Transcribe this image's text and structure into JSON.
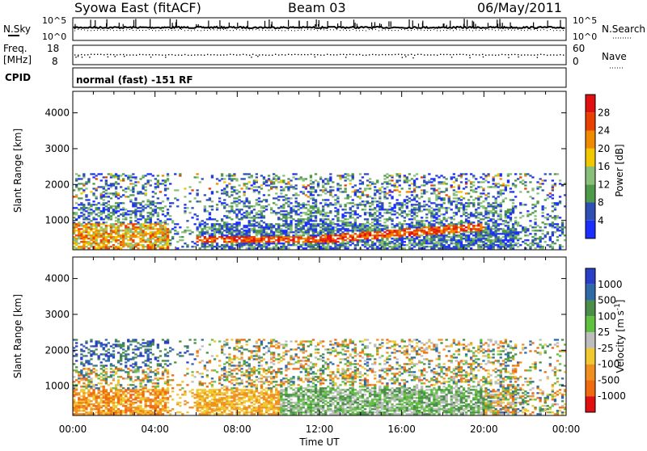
{
  "header": {
    "station": "Syowa East (fitACF)",
    "beam": "Beam 03",
    "date": "06/May/2011"
  },
  "noise_panel": {
    "left_label": "N.Sky",
    "right_label": "N.Search",
    "top_tick": "10^5",
    "bottom_tick": "10^0"
  },
  "freq_panel": {
    "left_label_line1": "Freq.",
    "left_label_line2": "[MHz]",
    "left_ticks": [
      "18",
      "8"
    ],
    "right_label": "Nave",
    "right_ticks": [
      "60",
      "0"
    ]
  },
  "cpid_panel": {
    "label": "CPID",
    "text": "normal (fast) -151 RF"
  },
  "chart_data": [
    {
      "type": "heatmap",
      "name": "power",
      "ylabel": "Slant Range [km]",
      "yticks": [
        1000,
        2000,
        3000,
        4000
      ],
      "ylim": [
        180,
        4600
      ],
      "xlim": [
        0,
        24
      ],
      "colorbar": {
        "label": "Power [dB]",
        "range": [
          0,
          32
        ],
        "ticks": [
          "4",
          "8",
          "12",
          "16",
          "20",
          "24",
          "28"
        ],
        "colors": [
          "#1a2fff",
          "#2f4fb5",
          "#4e9a4a",
          "#88c07a",
          "#f0c800",
          "#f08a00",
          "#e84000",
          "#e01010"
        ]
      }
    },
    {
      "type": "heatmap",
      "name": "velocity",
      "ylabel": "Slant Range [km]",
      "yticks": [
        1000,
        2000,
        3000,
        4000
      ],
      "ylim": [
        180,
        4600
      ],
      "xlim": [
        0,
        24
      ],
      "xlabel": "Time UT",
      "xticks": [
        "00:00",
        "04:00",
        "08:00",
        "12:00",
        "16:00",
        "20:00",
        "00:00"
      ],
      "colorbar": {
        "label": "Velocity [m s",
        "label_sup": "-1",
        "label_end": "]",
        "ticks": [
          "1000",
          "500",
          "100",
          "25",
          "-25",
          "-100",
          "-500",
          "-1000"
        ],
        "colors": [
          "#2a3fc8",
          "#2f6aa8",
          "#4a8e4a",
          "#60c040",
          "#bdbdbd",
          "#f0c830",
          "#f09020",
          "#f06a10",
          "#e01010"
        ]
      }
    }
  ]
}
